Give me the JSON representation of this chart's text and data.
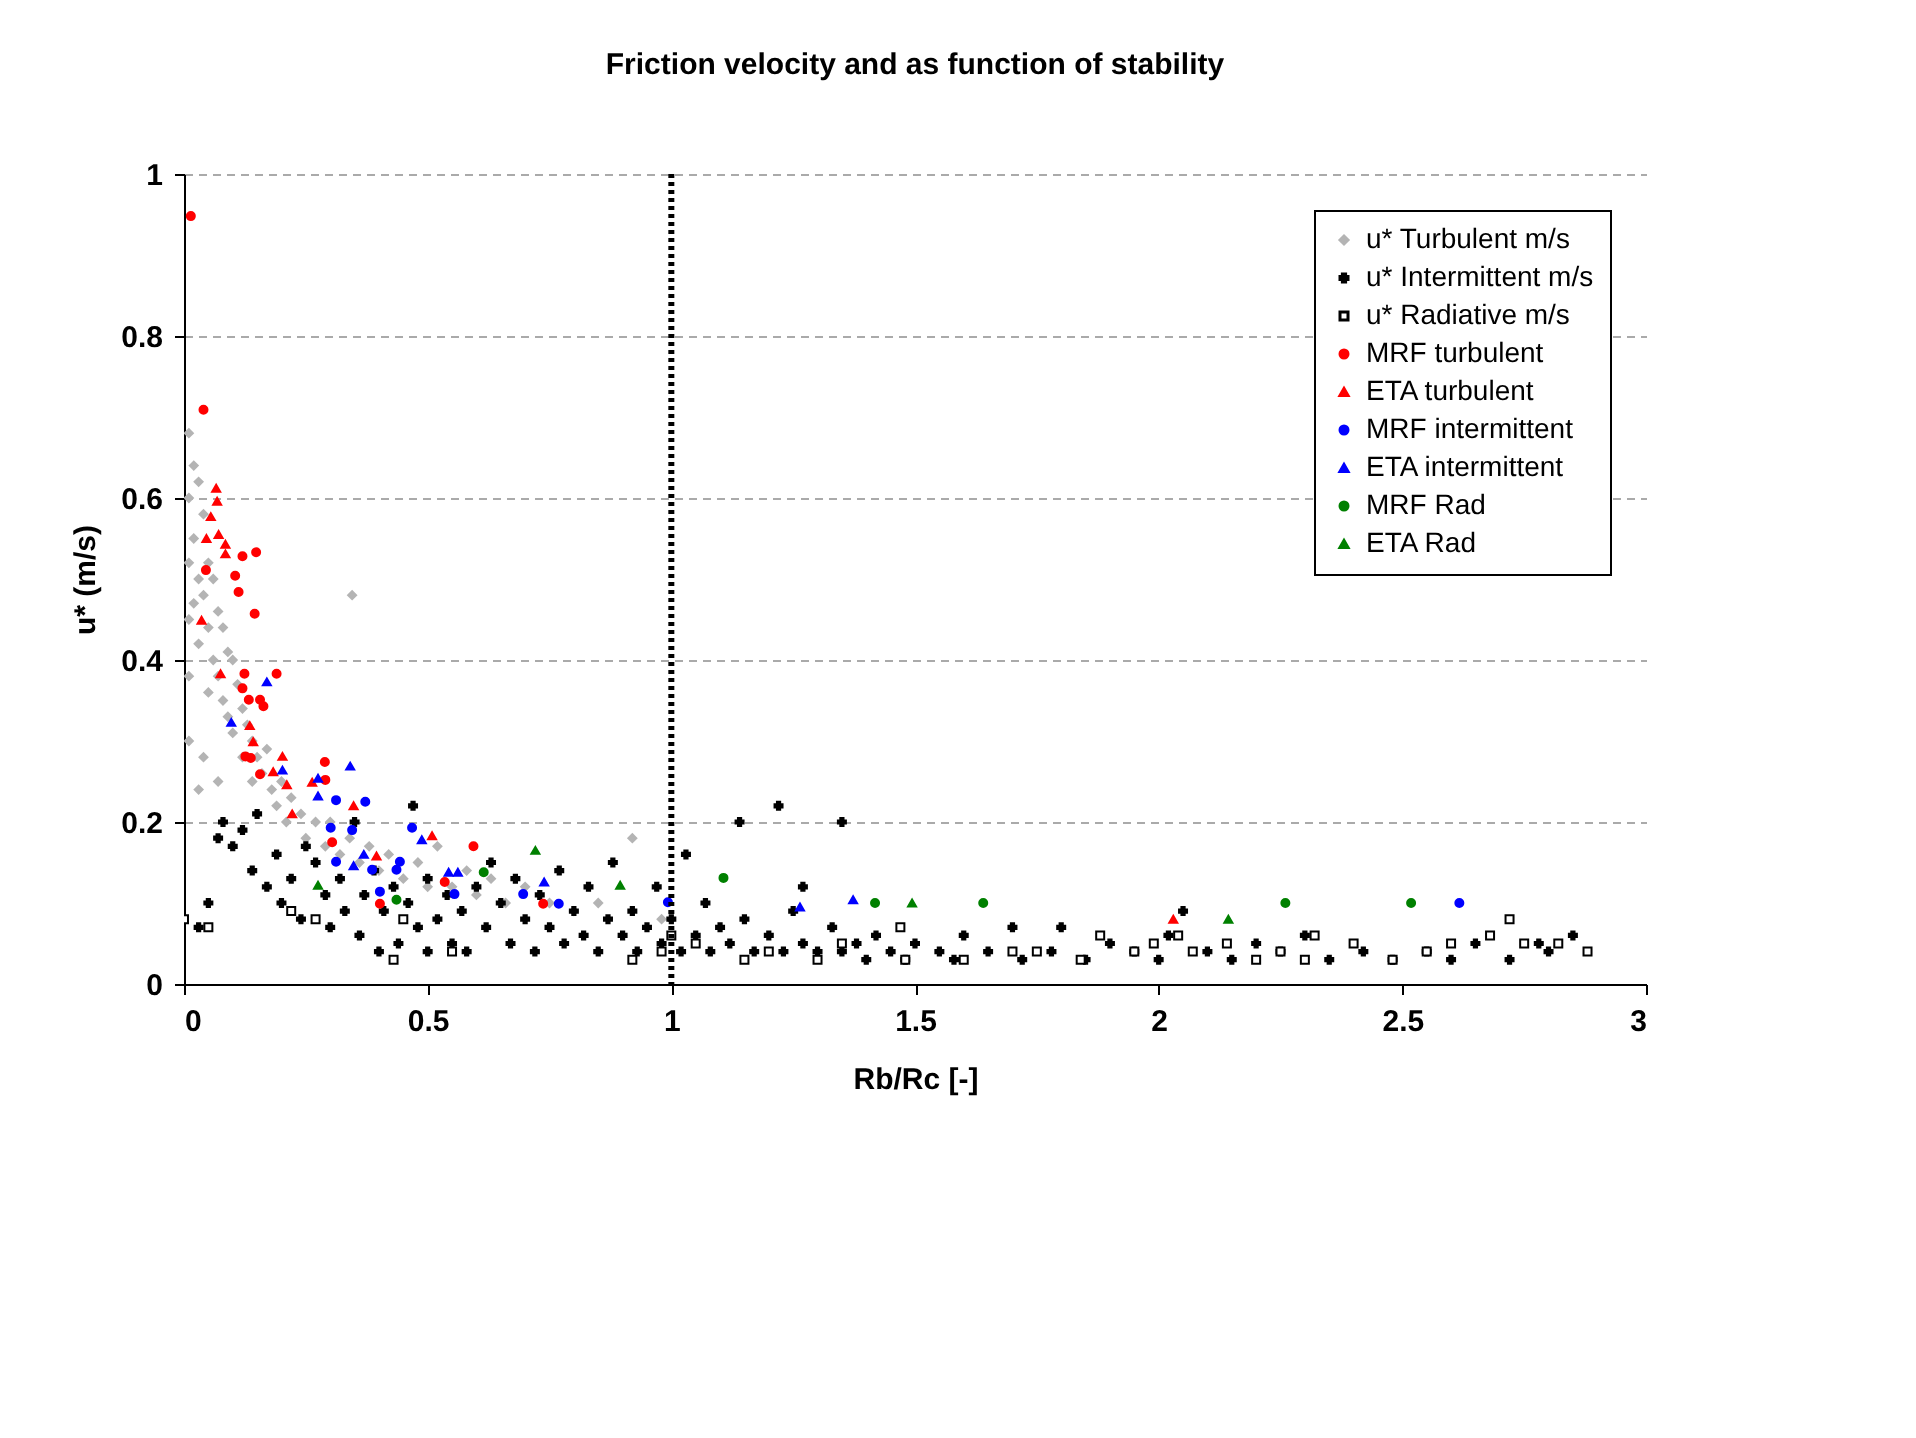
{
  "chart_data": {
    "type": "scatter",
    "title": "Friction velocity and as function of stability",
    "xlabel": "Rb/Rc [-]",
    "ylabel": "u* (m/s)",
    "xlim": [
      0,
      3
    ],
    "xticks": [
      0,
      0.5,
      1,
      1.5,
      2,
      2.5,
      3
    ],
    "ylim": [
      0,
      1
    ],
    "yticks": [
      0,
      0.2,
      0.4,
      0.6,
      0.8,
      1
    ],
    "grid": "y",
    "legend": "top right",
    "ref_lines": [
      {
        "axis": "x",
        "value": 1,
        "line_style": "dotted",
        "color": "#000000"
      }
    ],
    "series": [
      {
        "name": "u* Turbulent m/s",
        "color": "#b4b4b4",
        "marker": "diamond",
        "x": [
          0.01,
          0.01,
          0.01,
          0.01,
          0.01,
          0.02,
          0.02,
          0.02,
          0.03,
          0.03,
          0.03,
          0.04,
          0.04,
          0.05,
          0.05,
          0.05,
          0.06,
          0.06,
          0.07,
          0.07,
          0.08,
          0.08,
          0.09,
          0.09,
          0.1,
          0.1,
          0.11,
          0.12,
          0.12,
          0.13,
          0.14,
          0.14,
          0.15,
          0.16,
          0.17,
          0.18,
          0.19,
          0.2,
          0.21,
          0.22,
          0.24,
          0.25,
          0.27,
          0.29,
          0.3,
          0.32,
          0.34,
          0.345,
          0.36,
          0.38,
          0.4,
          0.42,
          0.45,
          0.48,
          0.5,
          0.52,
          0.55,
          0.58,
          0.6,
          0.63,
          0.66,
          0.7,
          0.75,
          0.8,
          0.85,
          0.92,
          0.98,
          0.01,
          0.04,
          0.03,
          0.07
        ],
        "values": [
          0.68,
          0.6,
          0.52,
          0.45,
          0.38,
          0.64,
          0.55,
          0.47,
          0.62,
          0.5,
          0.42,
          0.58,
          0.48,
          0.52,
          0.44,
          0.36,
          0.5,
          0.4,
          0.46,
          0.38,
          0.44,
          0.35,
          0.41,
          0.33,
          0.4,
          0.31,
          0.37,
          0.34,
          0.28,
          0.32,
          0.3,
          0.25,
          0.28,
          0.26,
          0.29,
          0.24,
          0.22,
          0.25,
          0.2,
          0.23,
          0.21,
          0.18,
          0.2,
          0.17,
          0.2,
          0.16,
          0.18,
          0.48,
          0.15,
          0.17,
          0.14,
          0.16,
          0.13,
          0.15,
          0.12,
          0.17,
          0.12,
          0.14,
          0.11,
          0.13,
          0.1,
          0.12,
          0.1,
          0.09,
          0.1,
          0.18,
          0.08,
          0.3,
          0.28,
          0.24,
          0.25
        ]
      },
      {
        "name": "u* Intermittent m/s",
        "color": "#000000",
        "marker": "cross",
        "x": [
          0.03,
          0.05,
          0.07,
          0.08,
          0.1,
          0.12,
          0.14,
          0.15,
          0.17,
          0.19,
          0.2,
          0.22,
          0.24,
          0.25,
          0.27,
          0.29,
          0.3,
          0.32,
          0.33,
          0.35,
          0.36,
          0.37,
          0.39,
          0.4,
          0.41,
          0.43,
          0.44,
          0.46,
          0.47,
          0.48,
          0.5,
          0.5,
          0.52,
          0.54,
          0.55,
          0.57,
          0.58,
          0.6,
          0.62,
          0.63,
          0.65,
          0.67,
          0.68,
          0.7,
          0.72,
          0.73,
          0.75,
          0.77,
          0.78,
          0.8,
          0.82,
          0.83,
          0.85,
          0.87,
          0.88,
          0.9,
          0.92,
          0.93,
          0.95,
          0.97,
          0.98,
          1.0,
          1.02,
          1.03,
          1.05,
          1.07,
          1.08,
          1.1,
          1.12,
          1.14,
          1.15,
          1.17,
          1.2,
          1.22,
          1.23,
          1.25,
          1.27,
          1.3,
          1.33,
          1.35,
          1.38,
          1.4,
          1.42,
          1.45,
          1.48,
          1.5,
          1.55,
          1.58,
          1.6,
          1.65,
          1.7,
          1.72,
          1.78,
          1.8,
          1.85,
          1.9,
          1.95,
          2.0,
          2.02,
          2.05,
          2.1,
          2.15,
          2.2,
          2.25,
          2.3,
          2.35,
          2.42,
          2.48,
          2.55,
          2.6,
          2.65,
          2.72,
          2.78,
          2.8,
          2.85,
          1.27,
          1.35
        ],
        "values": [
          0.07,
          0.1,
          0.18,
          0.2,
          0.17,
          0.19,
          0.14,
          0.21,
          0.12,
          0.16,
          0.1,
          0.13,
          0.08,
          0.17,
          0.15,
          0.11,
          0.07,
          0.13,
          0.09,
          0.2,
          0.06,
          0.11,
          0.14,
          0.04,
          0.09,
          0.12,
          0.05,
          0.1,
          0.22,
          0.07,
          0.04,
          0.13,
          0.08,
          0.11,
          0.05,
          0.09,
          0.04,
          0.12,
          0.07,
          0.15,
          0.1,
          0.05,
          0.13,
          0.08,
          0.04,
          0.11,
          0.07,
          0.14,
          0.05,
          0.09,
          0.06,
          0.12,
          0.04,
          0.08,
          0.15,
          0.06,
          0.09,
          0.04,
          0.07,
          0.12,
          0.05,
          0.08,
          0.04,
          0.16,
          0.06,
          0.1,
          0.04,
          0.07,
          0.05,
          0.2,
          0.08,
          0.04,
          0.06,
          0.22,
          0.04,
          0.09,
          0.05,
          0.04,
          0.07,
          0.04,
          0.05,
          0.03,
          0.06,
          0.04,
          0.03,
          0.05,
          0.04,
          0.03,
          0.06,
          0.04,
          0.07,
          0.03,
          0.04,
          0.07,
          0.03,
          0.05,
          0.04,
          0.03,
          0.06,
          0.09,
          0.04,
          0.03,
          0.05,
          0.04,
          0.06,
          0.03,
          0.04,
          0.03,
          0.04,
          0.03,
          0.05,
          0.03,
          0.05,
          0.04,
          0.06,
          0.12,
          0.2
        ]
      },
      {
        "name": "u* Radiative m/s",
        "color": "#000000",
        "marker": "square",
        "x": [
          0.0,
          0.05,
          0.22,
          0.27,
          0.43,
          0.45,
          0.55,
          0.92,
          0.98,
          1.0,
          1.05,
          1.15,
          1.2,
          1.3,
          1.35,
          1.48,
          1.6,
          1.7,
          1.75,
          1.84,
          1.88,
          1.95,
          1.99,
          2.04,
          2.07,
          2.14,
          2.2,
          2.25,
          2.3,
          2.4,
          2.48,
          2.55,
          2.6,
          2.68,
          2.72,
          2.75,
          2.82,
          2.88,
          1.47,
          2.32
        ],
        "values": [
          0.08,
          0.07,
          0.09,
          0.08,
          0.03,
          0.08,
          0.04,
          0.03,
          0.04,
          0.06,
          0.05,
          0.03,
          0.04,
          0.03,
          0.05,
          0.03,
          0.03,
          0.04,
          0.04,
          0.03,
          0.06,
          0.04,
          0.05,
          0.06,
          0.04,
          0.05,
          0.03,
          0.04,
          0.03,
          0.05,
          0.03,
          0.04,
          0.05,
          0.06,
          0.08,
          0.05,
          0.05,
          0.04,
          0.07,
          0.06
        ]
      },
      {
        "name": "MRF turbulent",
        "color": "#ff0000",
        "marker": "circle",
        "x": [
          0.014,
          0.04,
          0.045,
          0.12,
          0.148,
          0.105,
          0.112,
          0.145,
          0.124,
          0.19,
          0.12,
          0.133,
          0.156,
          0.163,
          0.126,
          0.137,
          0.156,
          0.289,
          0.29,
          0.304,
          0.594,
          0.535,
          0.402,
          0.737
        ],
        "values": [
          0.948,
          0.709,
          0.511,
          0.528,
          0.533,
          0.504,
          0.484,
          0.457,
          0.383,
          0.383,
          0.365,
          0.351,
          0.351,
          0.343,
          0.281,
          0.279,
          0.259,
          0.274,
          0.252,
          0.175,
          0.17,
          0.126,
          0.099,
          0.099
        ]
      },
      {
        "name": "ETA turbulent",
        "color": "#ff0000",
        "marker": "triangle",
        "x": [
          0.066,
          0.068,
          0.055,
          0.071,
          0.046,
          0.085,
          0.085,
          0.036,
          0.075,
          0.135,
          0.142,
          0.202,
          0.183,
          0.211,
          0.222,
          0.263,
          0.348,
          0.509,
          0.395,
          2.03
        ],
        "values": [
          0.612,
          0.596,
          0.577,
          0.555,
          0.55,
          0.543,
          0.531,
          0.449,
          0.383,
          0.319,
          0.299,
          0.281,
          0.262,
          0.246,
          0.21,
          0.249,
          0.22,
          0.183,
          0.158,
          0.08
        ]
      },
      {
        "name": "MRF intermittent",
        "color": "#0000ff",
        "marker": "circle",
        "x": [
          0.312,
          0.372,
          0.301,
          0.345,
          0.468,
          0.312,
          0.386,
          0.436,
          0.443,
          0.402,
          0.555,
          0.696,
          0.769,
          0.993,
          2.617
        ],
        "values": [
          0.227,
          0.225,
          0.193,
          0.19,
          0.193,
          0.151,
          0.141,
          0.141,
          0.151,
          0.114,
          0.111,
          0.111,
          0.099,
          0.101,
          0.1
        ]
      },
      {
        "name": "ETA intermittent",
        "color": "#0000ff",
        "marker": "triangle",
        "x": [
          0.17,
          0.097,
          0.202,
          0.275,
          0.275,
          0.341,
          0.488,
          0.348,
          0.369,
          0.543,
          0.562,
          0.739,
          1.264,
          1.373
        ],
        "values": [
          0.373,
          0.323,
          0.264,
          0.254,
          0.232,
          0.269,
          0.178,
          0.146,
          0.16,
          0.138,
          0.138,
          0.126,
          0.095,
          0.104
        ]
      },
      {
        "name": "MRF Rad",
        "color": "#008000",
        "marker": "circle",
        "x": [
          0.615,
          0.436,
          1.107,
          1.418,
          1.64,
          2.26,
          2.518
        ],
        "values": [
          0.138,
          0.104,
          0.131,
          0.1,
          0.1,
          0.1,
          0.1
        ]
      },
      {
        "name": "ETA Rad",
        "color": "#008000",
        "marker": "triangle",
        "x": [
          0.275,
          0.721,
          0.895,
          1.494,
          2.143
        ],
        "values": [
          0.122,
          0.165,
          0.122,
          0.1,
          0.08
        ]
      }
    ]
  }
}
